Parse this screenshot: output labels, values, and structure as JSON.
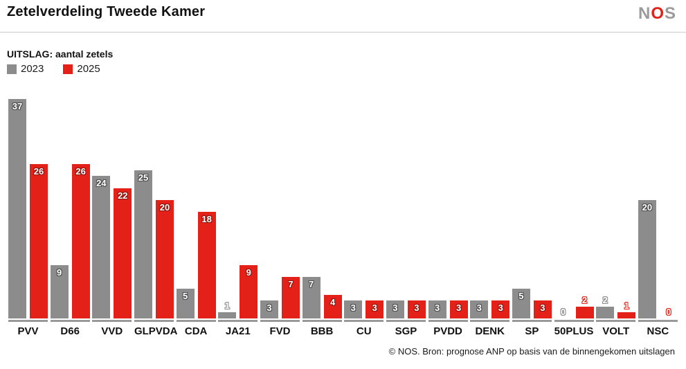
{
  "header": {
    "title": "Zetelverdeling Tweede Kamer",
    "logo": {
      "n": "N",
      "o": "O",
      "s": "S"
    }
  },
  "legend": {
    "title": "UITSLAG: aantal zetels",
    "items": [
      {
        "label": "2023",
        "color": "#8c8c8c"
      },
      {
        "label": "2025",
        "color": "#e32119"
      }
    ]
  },
  "chart_data": {
    "type": "bar",
    "title": "Zetelverdeling Tweede Kamer",
    "subtitle": "UITSLAG: aantal zetels",
    "categories": [
      "PVV",
      "D66",
      "VVD",
      "GLPVDA",
      "CDA",
      "JA21",
      "FVD",
      "BBB",
      "CU",
      "SGP",
      "PVDD",
      "DENK",
      "SP",
      "50PLUS",
      "VOLT",
      "NSC"
    ],
    "series": [
      {
        "name": "2023",
        "color": "#8c8c8c",
        "values": [
          37,
          9,
          24,
          25,
          5,
          1,
          3,
          7,
          3,
          3,
          3,
          3,
          5,
          0,
          2,
          20
        ]
      },
      {
        "name": "2025",
        "color": "#e32119",
        "values": [
          26,
          26,
          22,
          20,
          18,
          9,
          7,
          4,
          3,
          3,
          3,
          3,
          3,
          2,
          1,
          0
        ]
      }
    ],
    "xlabel": "",
    "ylabel": "aantal zetels",
    "ylim": [
      0,
      37
    ],
    "grid": false,
    "legend_position": "top-left",
    "value_labels": "shown on every bar; inside bar top when value >= 3, above bar when value <= 2"
  },
  "footer": {
    "source": "© NOS. Bron: prognose ANP op basis van de binnengekomen uitslagen"
  }
}
